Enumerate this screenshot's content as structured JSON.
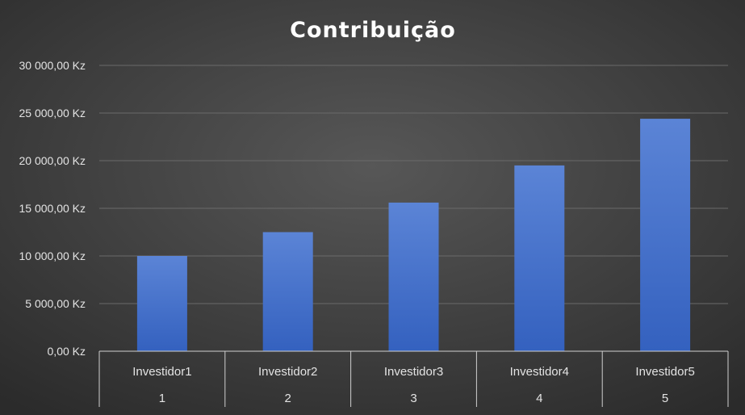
{
  "colors": {
    "background_center": "#575757",
    "background_edge": "#2b2b2b",
    "gridline": "#6a6a6a",
    "axis_line": "#d0d0d0",
    "text": "#e3e3e3",
    "title": "#ffffff",
    "bar_top": "#5b84d6",
    "bar_bottom": "#3461bf"
  },
  "chart_data": {
    "type": "bar",
    "title": "Contribuição",
    "xlabel": "",
    "ylabel": "",
    "categories": [
      "Investidor1",
      "Investidor2",
      "Investidor3",
      "Investidor4",
      "Investidor5"
    ],
    "category_indices": [
      "1",
      "2",
      "3",
      "4",
      "5"
    ],
    "values": [
      10000,
      12500,
      15600,
      19500,
      24400
    ],
    "ylim": [
      0,
      30000
    ],
    "y_ticks": [
      0,
      5000,
      10000,
      15000,
      20000,
      25000,
      30000
    ],
    "y_tick_labels": [
      "0,00 Kz",
      "5 000,00 Kz",
      "10 000,00 Kz",
      "15 000,00 Kz",
      "20 000,00 Kz",
      "25 000,00 Kz",
      "30 000,00 Kz"
    ],
    "grid": true,
    "legend": "none"
  }
}
